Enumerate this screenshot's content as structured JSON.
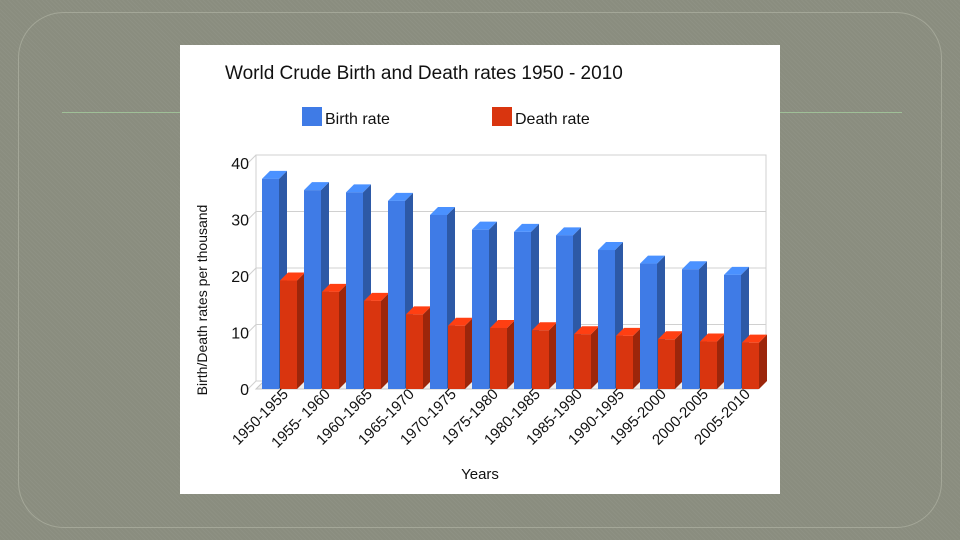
{
  "chart_data": {
    "type": "bar",
    "title": "World Crude Birth and Death rates 1950 - 2010",
    "xlabel": "Years",
    "ylabel": "Birth/Death rates per thousand",
    "ylim": [
      0,
      40
    ],
    "yticks": [
      "0",
      "10",
      "20",
      "30",
      "40"
    ],
    "grid": true,
    "legend_position": "top",
    "categories": [
      "1950-1955",
      "1955- 1960",
      "1960-1965",
      "1965-1970",
      "1970-1975",
      "1975-1980",
      "1980-1985",
      "1985-1990",
      "1990-1995",
      "1995-2000",
      "2000-2005",
      "2005-2010"
    ],
    "series": [
      {
        "name": "Birth rate",
        "color": "#3f7be6",
        "values": [
          37.2,
          35.2,
          34.8,
          33.3,
          30.8,
          28.2,
          27.8,
          27.2,
          24.6,
          22.2,
          21.2,
          20.2
        ]
      },
      {
        "name": "Death rate",
        "color": "#d9350f",
        "values": [
          19.2,
          17.2,
          15.6,
          13.2,
          11.2,
          10.8,
          10.4,
          9.7,
          9.4,
          8.8,
          8.4,
          8.2
        ]
      }
    ]
  }
}
